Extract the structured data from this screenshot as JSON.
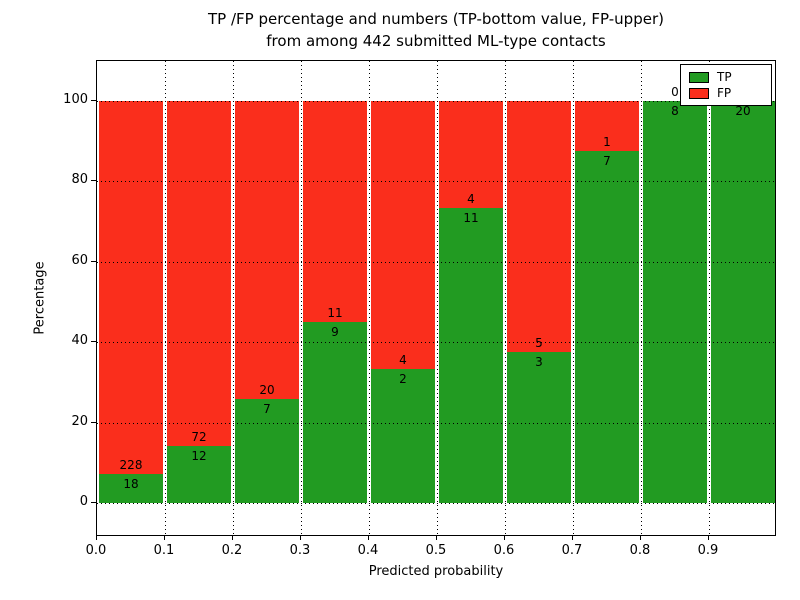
{
  "figure": {
    "title_line1": "TP /FP percentage and numbers (TP-bottom value, FP-upper)",
    "title_line2": "from among 442 submitted ML-type contacts",
    "xlabel": "Predicted probability",
    "ylabel": "Percentage"
  },
  "chart_data": {
    "type": "bar",
    "stacked": true,
    "normalized_to_percent": true,
    "title": "TP /FP percentage and numbers (TP-bottom value, FP-upper)\nfrom among 442 submitted ML-type contacts",
    "xlabel": "Predicted probability",
    "ylabel": "Percentage",
    "total_contacts": 442,
    "x_bin_edges": [
      0.0,
      0.1,
      0.2,
      0.3,
      0.4,
      0.5,
      0.6,
      0.7,
      0.8,
      0.9,
      1.0
    ],
    "x_tick_labels": [
      "0.0",
      "0.1",
      "0.2",
      "0.3",
      "0.4",
      "0.5",
      "0.6",
      "0.7",
      "0.8",
      "0.9"
    ],
    "y_tick_values": [
      0,
      20,
      40,
      60,
      80,
      100
    ],
    "ylim": [
      0,
      100
    ],
    "series": [
      {
        "name": "TP",
        "color": "#229b22",
        "counts": [
          18,
          12,
          7,
          9,
          2,
          11,
          3,
          7,
          8,
          20
        ]
      },
      {
        "name": "FP",
        "color": "#fa2e1c",
        "counts": [
          228,
          72,
          20,
          11,
          4,
          4,
          5,
          1,
          0,
          0
        ]
      }
    ],
    "tp_percent_of_bin": [
      7.3,
      14.3,
      25.9,
      45.0,
      33.3,
      73.3,
      37.5,
      87.5,
      100.0,
      100.0
    ],
    "grid": {
      "visible": true,
      "style": "dotted",
      "color": "#000000"
    },
    "legend": {
      "position": "upper right",
      "entries": [
        {
          "label": "TP",
          "color": "#229b22"
        },
        {
          "label": "FP",
          "color": "#fa2e1c"
        }
      ]
    }
  }
}
